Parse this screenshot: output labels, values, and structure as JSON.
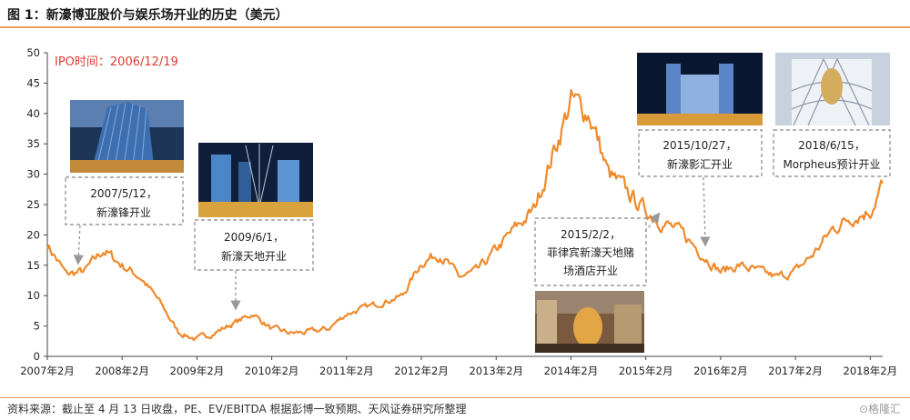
{
  "title": "图 1：新濠博亚股价与娱乐场开业的历史（美元）",
  "source": "资料来源：截止至 4 月 13 日收盘，PE、EV/EBITDA 根据彭博一致预期、天风证券研究所整理",
  "watermark": "⊙格隆汇",
  "colors": {
    "line": "#ef8a2c",
    "accent_rule": "#f0a060",
    "ipo_text": "#e03a2f",
    "box_border": "#999999"
  },
  "chart_data": {
    "type": "line",
    "title": "",
    "xlabel": "",
    "ylabel": "",
    "ylim": [
      0,
      50
    ],
    "yticks": [
      0,
      5,
      10,
      15,
      20,
      25,
      30,
      35,
      40,
      45,
      50
    ],
    "xlim": [
      "2007-02",
      "2018-04"
    ],
    "x_tick_labels": [
      "2007年2月",
      "2008年2月",
      "2009年2月",
      "2010年2月",
      "2011年2月",
      "2012年2月",
      "2013年2月",
      "2014年2月",
      "2015年2月",
      "2016年2月",
      "2017年2月",
      "2018年2月"
    ],
    "x_tick_dates": [
      "2007-02",
      "2008-02",
      "2009-02",
      "2010-02",
      "2011-02",
      "2012-02",
      "2013-02",
      "2014-02",
      "2015-02",
      "2016-02",
      "2017-02",
      "2018-02"
    ],
    "grid": false,
    "series": [
      {
        "x": [
          "2007-02",
          "2007-05",
          "2007-08",
          "2007-11",
          "2008-02",
          "2008-05",
          "2008-08",
          "2008-11",
          "2009-02",
          "2009-05",
          "2009-08",
          "2009-11",
          "2010-02",
          "2010-05",
          "2010-08",
          "2010-11",
          "2011-02",
          "2011-05",
          "2011-08",
          "2011-11",
          "2012-02",
          "2012-05",
          "2012-08",
          "2012-11",
          "2013-02",
          "2013-05",
          "2013-08",
          "2013-11",
          "2014-02",
          "2014-05",
          "2014-08",
          "2014-11",
          "2015-02",
          "2015-05",
          "2015-08",
          "2015-11",
          "2016-02",
          "2016-05",
          "2016-08",
          "2016-11",
          "2017-02",
          "2017-05",
          "2017-08",
          "2017-11",
          "2018-02",
          "2018-04"
        ],
        "values": [
          18.5,
          13.5,
          14,
          17.5,
          15,
          13,
          9,
          4,
          2.8,
          4,
          5.5,
          7,
          4.5,
          3.8,
          4,
          4.5,
          7,
          8,
          9,
          10,
          15.5,
          17,
          13,
          14,
          17.5,
          21,
          24,
          33,
          42,
          40,
          30,
          27,
          24,
          22,
          20,
          17,
          14,
          15,
          14,
          13,
          14,
          17,
          21,
          23,
          24,
          28.5
        ]
      }
    ],
    "annotations": [
      {
        "text": "IPO时间：2006/12/19"
      },
      {
        "lines": [
          "2007/5/12，",
          "新濠锋开业"
        ],
        "date": "2007-05"
      },
      {
        "lines": [
          "2009/6/1，",
          "新濠天地开业"
        ],
        "date": "2009-06"
      },
      {
        "lines": [
          "2015/2/2，",
          "菲律宾新濠天地赌",
          "场酒店开业"
        ],
        "date": "2015-02"
      },
      {
        "lines": [
          "2015/10/27，",
          "新濠影汇开业"
        ],
        "date": "2015-10"
      },
      {
        "lines": [
          "2018/6/15，",
          "Morpheus预计开业"
        ],
        "date": "2018-06"
      }
    ]
  }
}
